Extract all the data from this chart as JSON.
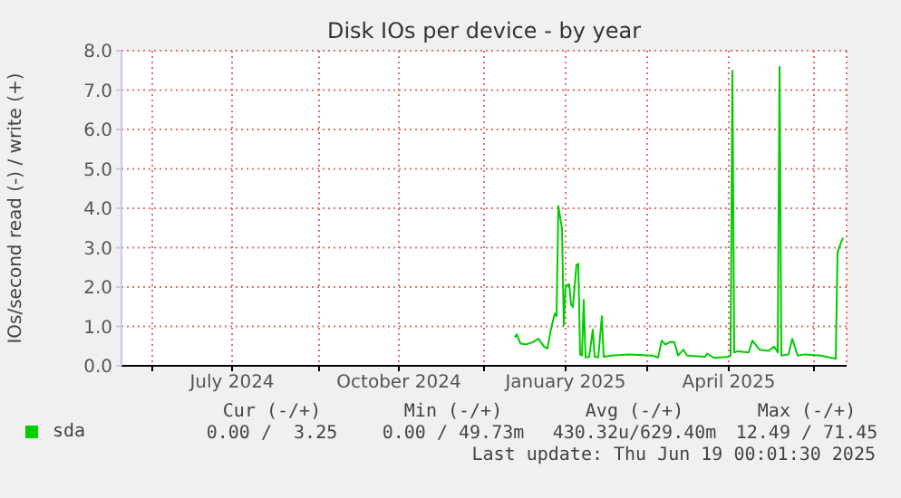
{
  "chart_data": {
    "type": "line",
    "title": "Disk IOs per device - by year",
    "ylabel": "IOs/second read (-) / write (+)",
    "xlim": [
      "2024-05-15",
      "2025-06-19"
    ],
    "xticks": [
      {
        "value": "2024-06-01",
        "label": null
      },
      {
        "value": "2024-07-15",
        "label": "July 2024"
      },
      {
        "value": "2024-09-01",
        "label": null
      },
      {
        "value": "2024-10-15",
        "label": "October 2024"
      },
      {
        "value": "2024-12-01",
        "label": null
      },
      {
        "value": "2025-01-15",
        "label": "January 2025"
      },
      {
        "value": "2025-03-01",
        "label": null
      },
      {
        "value": "2025-04-15",
        "label": "April 2025"
      },
      {
        "value": "2025-06-01",
        "label": null
      }
    ],
    "ylim": [
      0,
      8
    ],
    "yticks": [
      {
        "value": 0,
        "label": "0.0"
      },
      {
        "value": 1,
        "label": "1.0"
      },
      {
        "value": 2,
        "label": "2.0"
      },
      {
        "value": 3,
        "label": "3.0"
      },
      {
        "value": 4,
        "label": "4.0"
      },
      {
        "value": 5,
        "label": "5.0"
      },
      {
        "value": 6,
        "label": "6.0"
      },
      {
        "value": 7,
        "label": "7.0"
      },
      {
        "value": 8,
        "label": "8.0"
      }
    ],
    "grid": true,
    "legend": "bottom left",
    "x": [
      "2024-12-18",
      "2024-12-19",
      "2024-12-21",
      "2024-12-24",
      "2024-12-28",
      "2024-12-31",
      "2025-01-03",
      "2025-01-05",
      "2025-01-07",
      "2025-01-09",
      "2025-01-10",
      "2025-01-11",
      "2025-01-13",
      "2025-01-14",
      "2025-01-15",
      "2025-01-17",
      "2025-01-18",
      "2025-01-19",
      "2025-01-21",
      "2025-01-22",
      "2025-01-23",
      "2025-01-24",
      "2025-01-25",
      "2025-01-26",
      "2025-01-28",
      "2025-01-30",
      "2025-01-31",
      "2025-02-02",
      "2025-02-04",
      "2025-02-05",
      "2025-02-09",
      "2025-02-19",
      "2025-03-04",
      "2025-03-07",
      "2025-03-09",
      "2025-03-11",
      "2025-03-14",
      "2025-03-16",
      "2025-03-18",
      "2025-03-21",
      "2025-03-23",
      "2025-04-02",
      "2025-04-03",
      "2025-04-07",
      "2025-04-15",
      "2025-04-16",
      "2025-04-17",
      "2025-04-18",
      "2025-04-20",
      "2025-04-26",
      "2025-04-28",
      "2025-05-02",
      "2025-05-07",
      "2025-05-10",
      "2025-05-12",
      "2025-05-13",
      "2025-05-14",
      "2025-05-18",
      "2025-05-20",
      "2025-05-23",
      "2025-05-27",
      "2025-06-05",
      "2025-06-13",
      "2025-06-14",
      "2025-06-15",
      "2025-06-17"
    ],
    "series": [
      {
        "name": "sda",
        "color": "#00cc00",
        "values": [
          0.72,
          0.8,
          0.57,
          0.54,
          0.6,
          0.69,
          0.49,
          0.44,
          0.95,
          1.33,
          1.26,
          4.06,
          3.48,
          1.03,
          2.02,
          2.07,
          1.56,
          1.49,
          2.56,
          2.59,
          0.29,
          0.26,
          1.67,
          0.21,
          0.23,
          0.92,
          0.23,
          0.21,
          1.26,
          0.23,
          0.26,
          0.29,
          0.26,
          0.21,
          0.64,
          0.54,
          0.61,
          0.6,
          0.26,
          0.41,
          0.26,
          0.23,
          0.31,
          0.2,
          0.23,
          0.26,
          7.49,
          0.34,
          0.37,
          0.34,
          0.64,
          0.41,
          0.38,
          0.49,
          0.34,
          7.59,
          0.26,
          0.29,
          0.69,
          0.26,
          0.29,
          0.26,
          0.18,
          2.87,
          3.02,
          3.25
        ]
      }
    ],
    "annotations": [
      "Cur (-/+)",
      "Min (-/+)",
      "Avg (-/+)",
      "Max (-/+)",
      "0.00 /  3.25",
      "0.00 / 49.73m",
      "430.32u/629.40m",
      "12.49 / 71.45",
      "Last update: Thu Jun 19 00:01:30 2025"
    ]
  }
}
